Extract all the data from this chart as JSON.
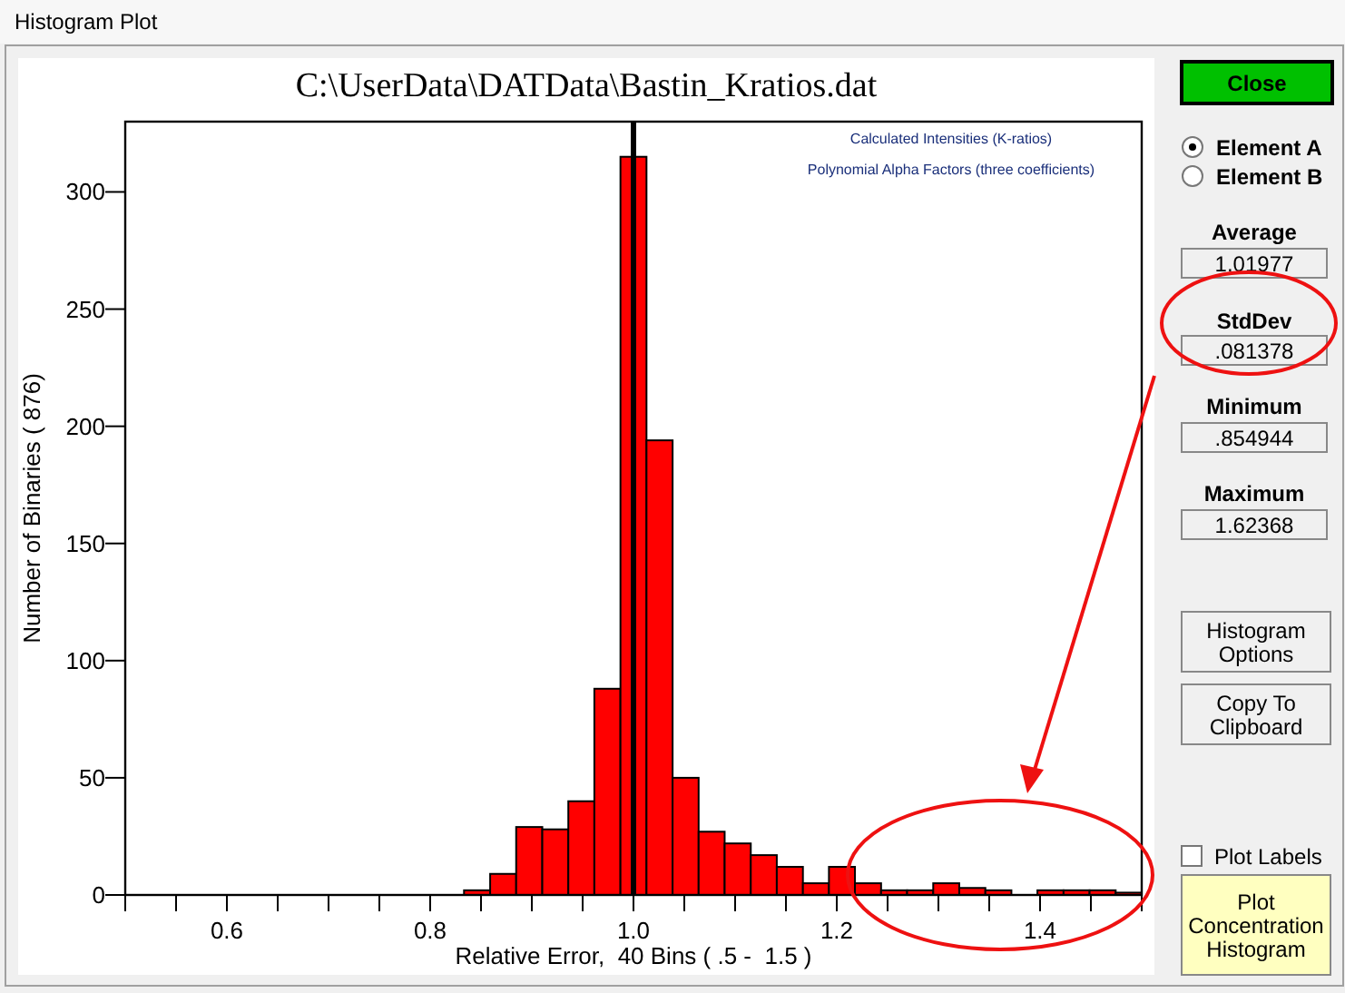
{
  "chart_data": [
    {
      "type": "histogram",
      "title": "C:\\UserData\\DATData\\Bastin_Kratios.dat",
      "xlabel": "Relative Error,  40 Bins ( .5 -  1.5 )",
      "ylabel": "Number of Binaries ( 876)",
      "bins": [
        0.5,
        0.5256,
        0.5513,
        0.5769,
        0.6026,
        0.6282,
        0.6538,
        0.6795,
        0.7051,
        0.7308,
        0.7564,
        0.7821,
        0.8077,
        0.8333,
        0.859,
        0.8846,
        0.9103,
        0.9359,
        0.9615,
        0.9872,
        1.0128,
        1.0385,
        1.0641,
        1.0897,
        1.1154,
        1.141,
        1.1667,
        1.1923,
        1.2179,
        1.2436,
        1.2692,
        1.2949,
        1.3205,
        1.3462,
        1.3718,
        1.3974,
        1.4231,
        1.4487,
        1.4744,
        1.5
      ],
      "values": [
        0,
        0,
        0,
        0,
        0,
        0,
        0,
        0,
        0,
        0,
        0,
        0,
        0,
        2,
        9,
        29,
        28,
        40,
        88,
        315,
        194,
        50,
        27,
        22,
        17,
        12,
        5,
        12,
        5,
        2,
        2,
        5,
        3,
        2,
        0,
        2,
        2,
        2,
        1
      ],
      "color": "#ff0000",
      "xlim": [
        0.5,
        1.5
      ],
      "xticks": [
        {
          "value": 0.5,
          "label": null
        },
        {
          "value": 0.55,
          "label": null
        },
        {
          "value": 0.6,
          "label": "0.6"
        },
        {
          "value": 0.65,
          "label": null
        },
        {
          "value": 0.7,
          "label": null
        },
        {
          "value": 0.75,
          "label": null
        },
        {
          "value": 0.8,
          "label": "0.8"
        },
        {
          "value": 0.85,
          "label": null
        },
        {
          "value": 0.9,
          "label": null
        },
        {
          "value": 0.95,
          "label": null
        },
        {
          "value": 1.0,
          "label": "1.0"
        },
        {
          "value": 1.05,
          "label": null
        },
        {
          "value": 1.1,
          "label": null
        },
        {
          "value": 1.15,
          "label": null
        },
        {
          "value": 1.2,
          "label": "1.2"
        },
        {
          "value": 1.25,
          "label": null
        },
        {
          "value": 1.3,
          "label": null
        },
        {
          "value": 1.35,
          "label": null
        },
        {
          "value": 1.4,
          "label": "1.4"
        },
        {
          "value": 1.45,
          "label": null
        },
        {
          "value": 1.5,
          "label": null
        }
      ],
      "ylim": [
        0,
        330
      ],
      "yticks": [
        0,
        50,
        100,
        150,
        200,
        250,
        300
      ],
      "ref_lines": [
        {
          "axis": "x",
          "value": 1.0,
          "color": "#000000"
        }
      ],
      "annotations": [
        "Calculated Intensities (K-ratios)",
        "Polynomial Alpha Factors (three coefficients)"
      ]
    },
    {
      "type": "other",
      "title": "Histogram Plot",
      "annotations": [
        "Close",
        "Element A",
        "Element B",
        "Average",
        "1.01977",
        "StdDev",
        ".081378",
        "Minimum",
        ".854944",
        "Maximum",
        "1.62368",
        "Histogram Options",
        "Copy To Clipboard",
        "Plot Labels",
        "Plot Concentration Histogram"
      ]
    }
  ]
}
